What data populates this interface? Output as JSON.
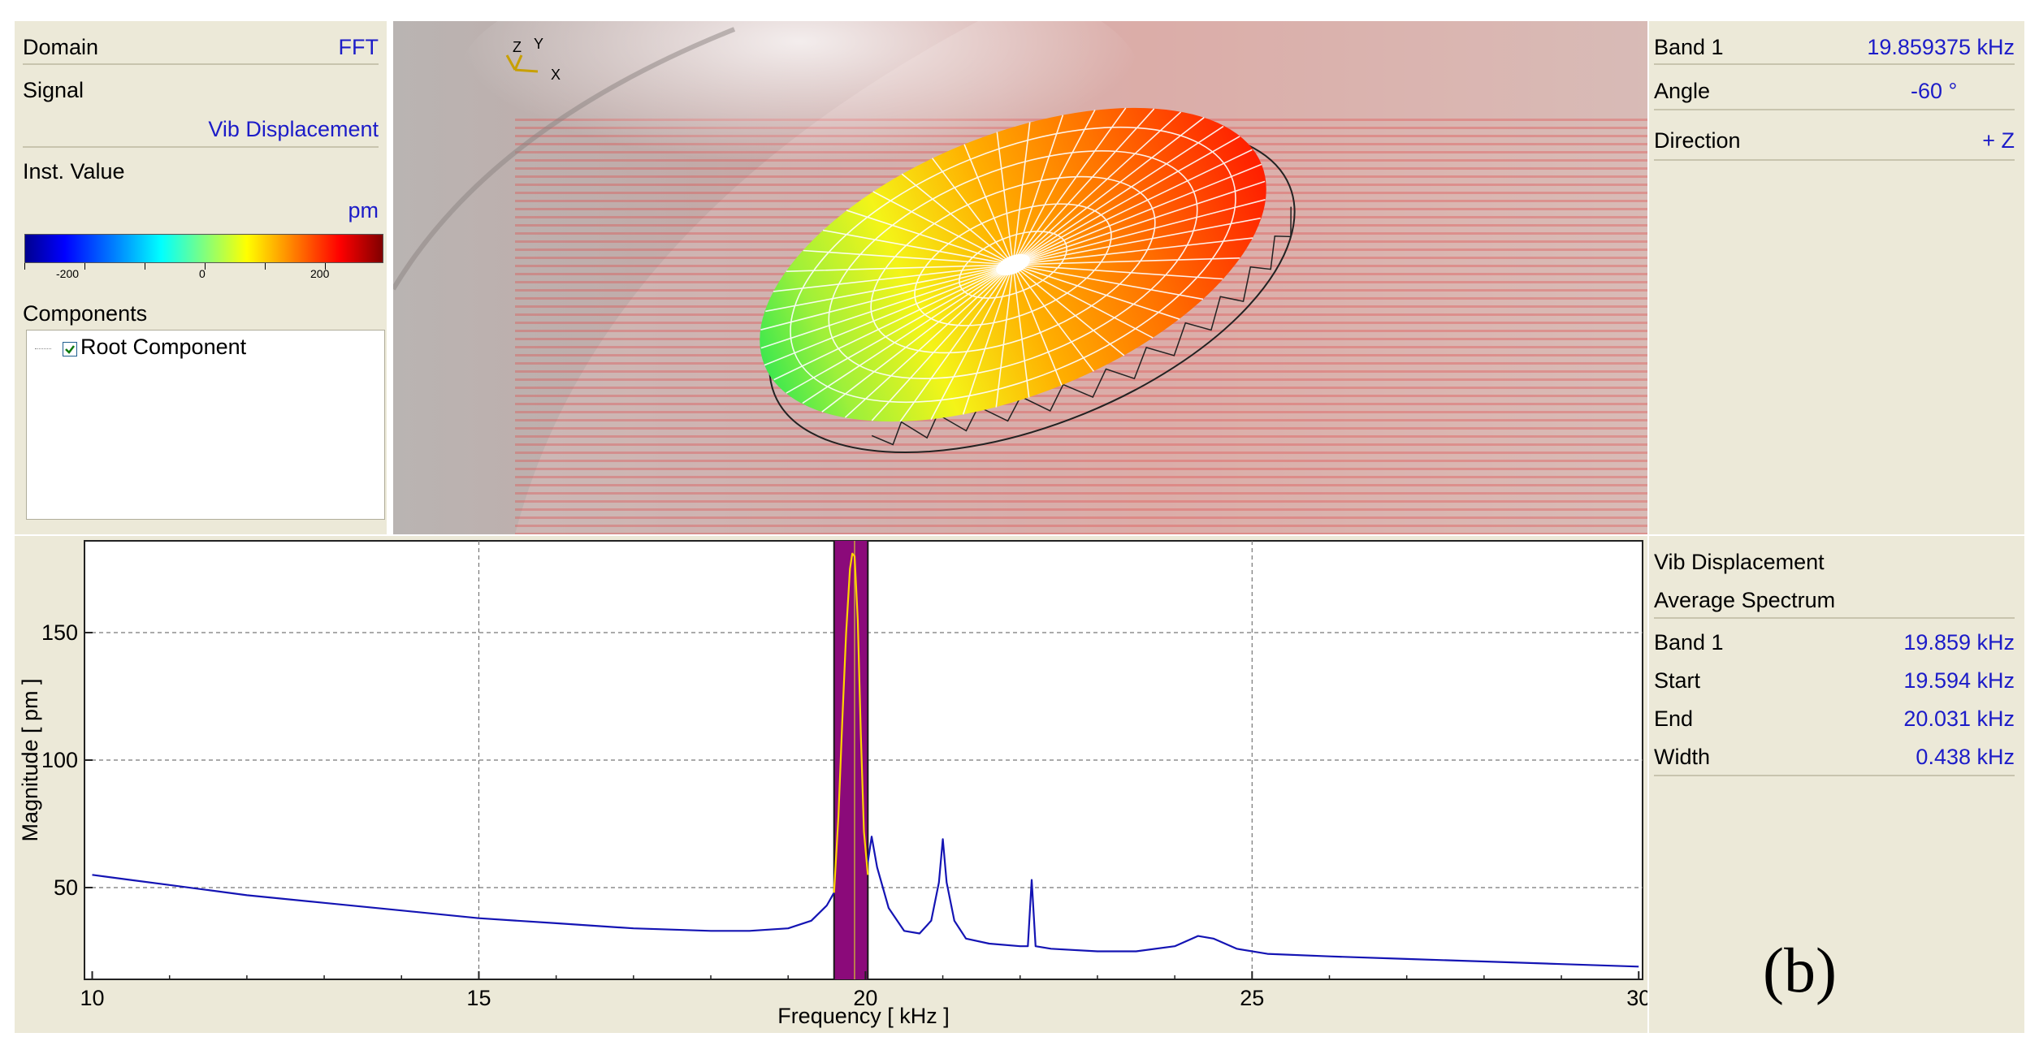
{
  "left_panel": {
    "domain_label": "Domain",
    "domain_value": "FFT",
    "signal_label": "Signal",
    "signal_value": "Vib Displacement",
    "inst_value_label": "Inst. Value",
    "unit": "pm",
    "colorbar_ticks": [
      "-200",
      "0",
      "200"
    ],
    "components_label": "Components",
    "root_component_label": "Root Component",
    "root_component_checked": true
  },
  "view3d": {
    "axis_labels": {
      "z": "Z",
      "y": "Y",
      "x": "X"
    }
  },
  "right_top": {
    "band_label": "Band 1",
    "band_value": "19.859375 kHz",
    "angle_label": "Angle",
    "angle_value": "-60 °",
    "direction_label": "Direction",
    "direction_value": "+ Z"
  },
  "right_bottom": {
    "signal_value": "Vib Displacement",
    "spectrum_type": "Average Spectrum",
    "band_label": "Band 1",
    "band_value": "19.859 kHz",
    "start_label": "Start",
    "start_value": "19.594 kHz",
    "end_label": "End",
    "end_value": "20.031 kHz",
    "width_label": "Width",
    "width_value": "0.438 kHz"
  },
  "figure_label": "(b)",
  "colors": {
    "series": "#1414b4",
    "band_fill": "#8b0a7a",
    "band_line": "#ffd400",
    "value_text": "#1c1cc8"
  },
  "chart_data": {
    "type": "line",
    "xlabel": "Frequency [ kHz ]",
    "ylabel": "Magnitude [ pm ]",
    "xlim": [
      9.9,
      30.05
    ],
    "ylim": [
      14,
      186
    ],
    "x_ticks": [
      10,
      15,
      20,
      25,
      30
    ],
    "y_ticks": [
      50,
      100,
      150
    ],
    "grid": true,
    "band": {
      "start": 19.594,
      "end": 20.031,
      "center": 19.859
    },
    "series": [
      {
        "x": [
          10,
          10.5,
          11,
          12,
          13,
          14,
          15,
          16,
          17,
          18,
          18.5,
          19,
          19.3,
          19.5,
          19.594
        ],
        "y": [
          55,
          53,
          51,
          47,
          44,
          41,
          38,
          36,
          34,
          33,
          33,
          34,
          37,
          43,
          48
        ]
      },
      {
        "x": [
          20.031,
          20.08,
          20.15,
          20.3,
          20.5,
          20.7,
          20.85,
          20.95,
          21.0,
          21.05,
          21.15,
          21.3,
          21.6,
          22.0,
          22.1,
          22.15,
          22.2,
          22.4,
          23,
          23.5,
          24.0,
          24.3,
          24.5,
          24.8,
          25.2,
          26,
          27,
          28,
          29,
          30
        ],
        "y": [
          60,
          70,
          58,
          42,
          33,
          32,
          37,
          52,
          69,
          52,
          37,
          30,
          28,
          27,
          27,
          53,
          27,
          26,
          25,
          25,
          27,
          31,
          30,
          26,
          24,
          23,
          22,
          21,
          20,
          19
        ]
      },
      {
        "x": [
          19.594,
          19.65,
          19.7,
          19.75,
          19.8,
          19.83,
          19.859,
          19.9,
          19.94,
          19.98,
          20.031
        ],
        "y": [
          48,
          78,
          115,
          150,
          175,
          181,
          180,
          155,
          110,
          72,
          55
        ]
      }
    ]
  }
}
